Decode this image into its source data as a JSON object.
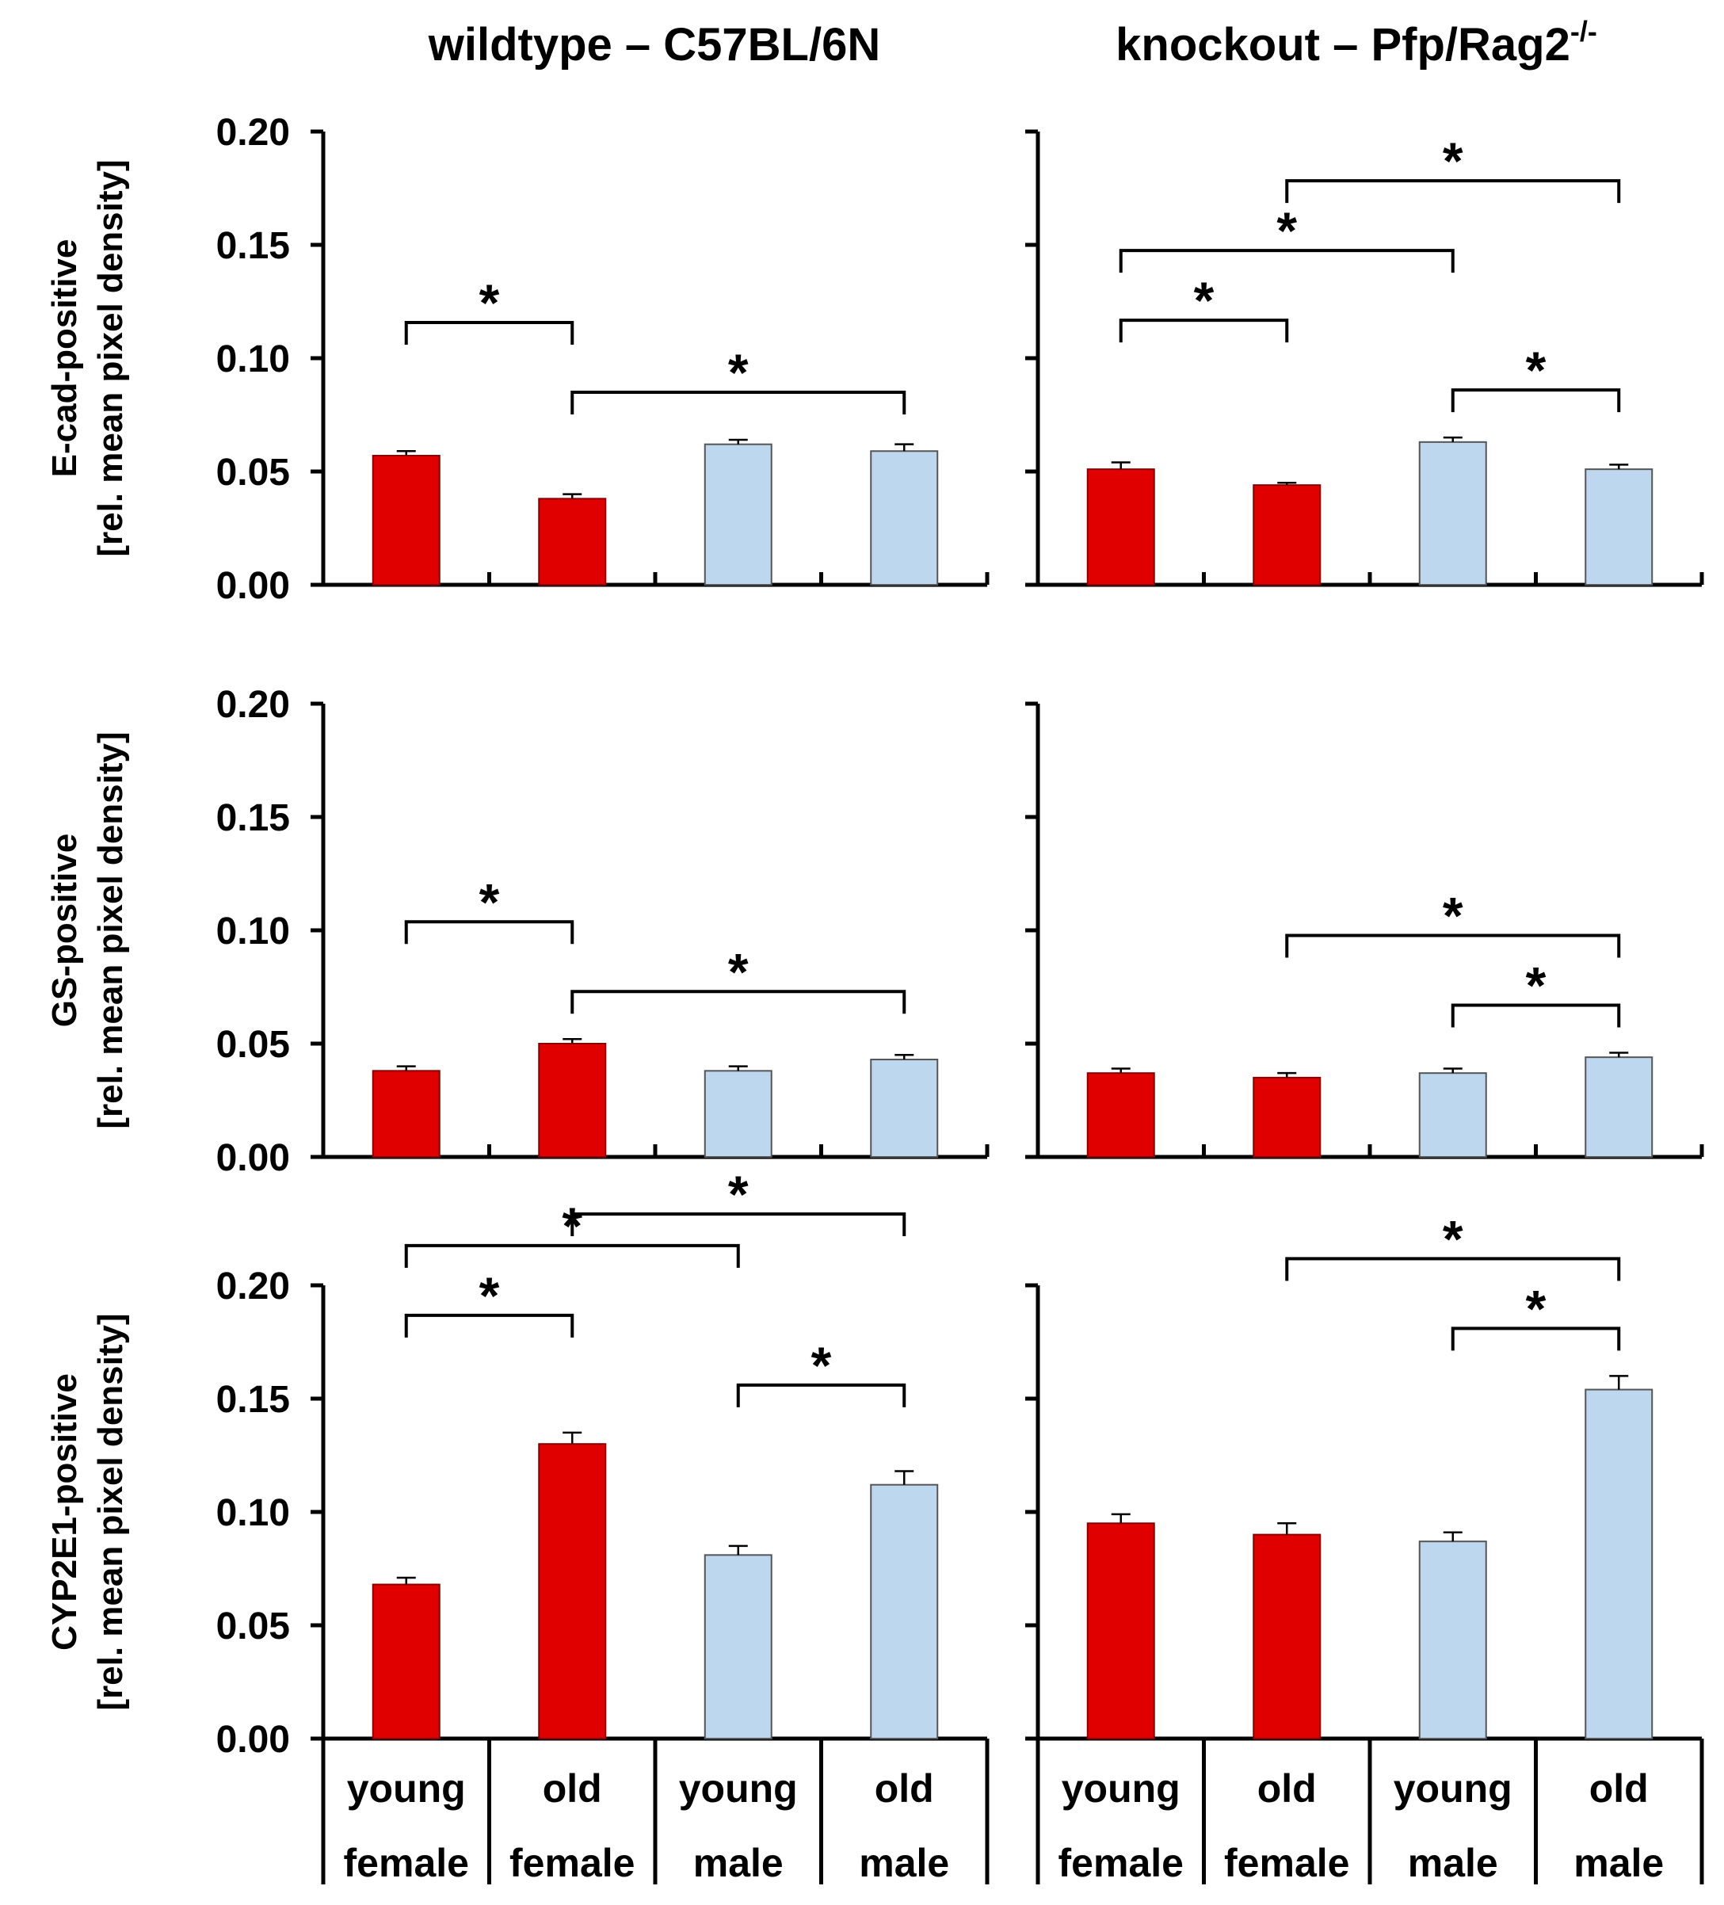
{
  "figure": {
    "columns": [
      {
        "title": "wildtype – C57BL/6N",
        "superscript": ""
      },
      {
        "title": "knockout – Pfp/Rag2",
        "superscript": "-/-"
      }
    ],
    "y_axis_unit": "[rel. mean pixel density]",
    "y_ticks": [
      "0.00",
      "0.05",
      "0.10",
      "0.15",
      "0.20"
    ],
    "category_age": [
      "young",
      "old",
      "young",
      "old"
    ],
    "category_sex": [
      "female",
      "female",
      "male",
      "male"
    ],
    "significance_marker": "*"
  },
  "colors": {
    "female": "#e00000",
    "male": "#bdd7ee",
    "male_outline": "#555555",
    "axis": "#000000"
  },
  "chart_data": [
    {
      "type": "bar",
      "title": "wildtype – C57BL/6N",
      "ylabel": "E-cad-positive",
      "categories": [
        "young female",
        "old female",
        "young male",
        "old male"
      ],
      "values": [
        0.057,
        0.038,
        0.062,
        0.059
      ],
      "errors": [
        0.002,
        0.002,
        0.002,
        0.003
      ],
      "ylim": [
        0,
        0.2
      ],
      "significance": [
        [
          0,
          1
        ],
        [
          1,
          3
        ]
      ]
    },
    {
      "type": "bar",
      "title": "knockout – Pfp/Rag2-/-",
      "ylabel": "E-cad-positive",
      "categories": [
        "young female",
        "old female",
        "young male",
        "old male"
      ],
      "values": [
        0.051,
        0.044,
        0.063,
        0.051
      ],
      "errors": [
        0.003,
        0.001,
        0.002,
        0.002
      ],
      "ylim": [
        0,
        0.2
      ],
      "significance": [
        [
          1,
          3
        ],
        [
          0,
          2
        ],
        [
          0,
          1
        ],
        [
          2,
          3
        ]
      ]
    },
    {
      "type": "bar",
      "title": "wildtype – C57BL/6N",
      "ylabel": "GS-positive",
      "categories": [
        "young female",
        "old female",
        "young male",
        "old male"
      ],
      "values": [
        0.038,
        0.05,
        0.038,
        0.043
      ],
      "errors": [
        0.002,
        0.002,
        0.002,
        0.002
      ],
      "ylim": [
        0,
        0.2
      ],
      "significance": [
        [
          0,
          1
        ],
        [
          1,
          3
        ]
      ]
    },
    {
      "type": "bar",
      "title": "knockout – Pfp/Rag2-/-",
      "ylabel": "GS-positive",
      "categories": [
        "young female",
        "old female",
        "young male",
        "old male"
      ],
      "values": [
        0.037,
        0.035,
        0.037,
        0.044
      ],
      "errors": [
        0.002,
        0.002,
        0.002,
        0.002
      ],
      "ylim": [
        0,
        0.2
      ],
      "significance": [
        [
          1,
          3
        ],
        [
          2,
          3
        ]
      ]
    },
    {
      "type": "bar",
      "title": "wildtype – C57BL/6N",
      "ylabel": "CYP2E1-positive",
      "categories": [
        "young female",
        "old female",
        "young male",
        "old male"
      ],
      "values": [
        0.068,
        0.13,
        0.081,
        0.112
      ],
      "errors": [
        0.003,
        0.005,
        0.004,
        0.006
      ],
      "ylim": [
        0,
        0.2
      ],
      "significance": [
        [
          1,
          3
        ],
        [
          0,
          2
        ],
        [
          0,
          1
        ],
        [
          2,
          3
        ]
      ]
    },
    {
      "type": "bar",
      "title": "knockout – Pfp/Rag2-/-",
      "ylabel": "CYP2E1-positive",
      "categories": [
        "young female",
        "old female",
        "young male",
        "old male"
      ],
      "values": [
        0.095,
        0.09,
        0.087,
        0.154
      ],
      "errors": [
        0.004,
        0.005,
        0.004,
        0.006
      ],
      "ylim": [
        0,
        0.2
      ],
      "significance": [
        [
          1,
          3
        ],
        [
          2,
          3
        ]
      ]
    }
  ]
}
